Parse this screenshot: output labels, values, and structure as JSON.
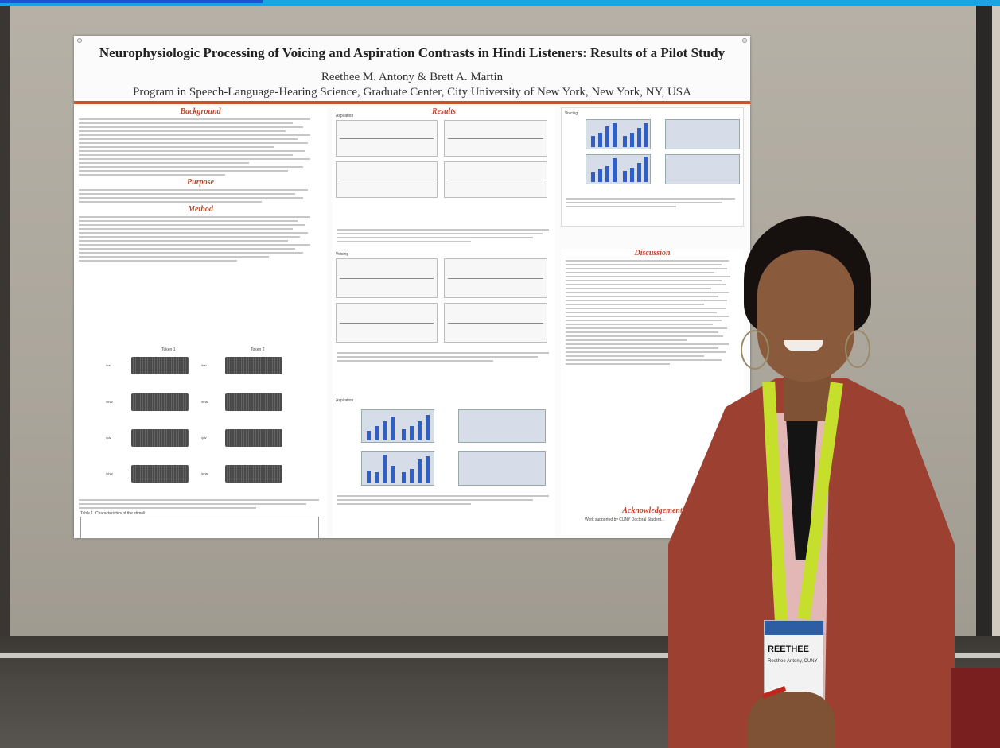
{
  "poster": {
    "title": "Neurophysiologic Processing of Voicing and Aspiration Contrasts in Hindi Listeners: Results of a Pilot Study",
    "authors": "Reethee M. Antony & Brett A. Martin",
    "affiliation": "Program in Speech-Language-Hearing Science, Graduate Center, City University of New York, New York, NY, USA",
    "sections": {
      "background": "Background",
      "purpose": "Purpose",
      "method": "Method",
      "results": "Results",
      "discussion": "Discussion",
      "acknowledgement": "Acknowledgement"
    },
    "panel_labels": {
      "aspiration": "Aspiration",
      "voicing": "Voicing",
      "token1": "Token 1",
      "token2": "Token 2"
    },
    "stimuli_left": [
      "/ba/",
      "/bha/",
      "/pa/",
      "/pha/"
    ],
    "stimuli_right": [
      "/ba/",
      "/bha/",
      "/pa/",
      "/pha/"
    ],
    "table_title": "Table 1. Characteristics of the stimuli",
    "acknowledgement_text": "Work supported by CUNY Doctoral Student..."
  },
  "badge": {
    "name": "REETHEE",
    "sub": "Reethee Antony, CUNY"
  },
  "colors": {
    "accent_rule": "#c4532e",
    "section_heading": "#b5472a",
    "bar_blue": "#2f5ec4",
    "jacket": "#9c4032",
    "lanyard": "#c6df2c"
  }
}
